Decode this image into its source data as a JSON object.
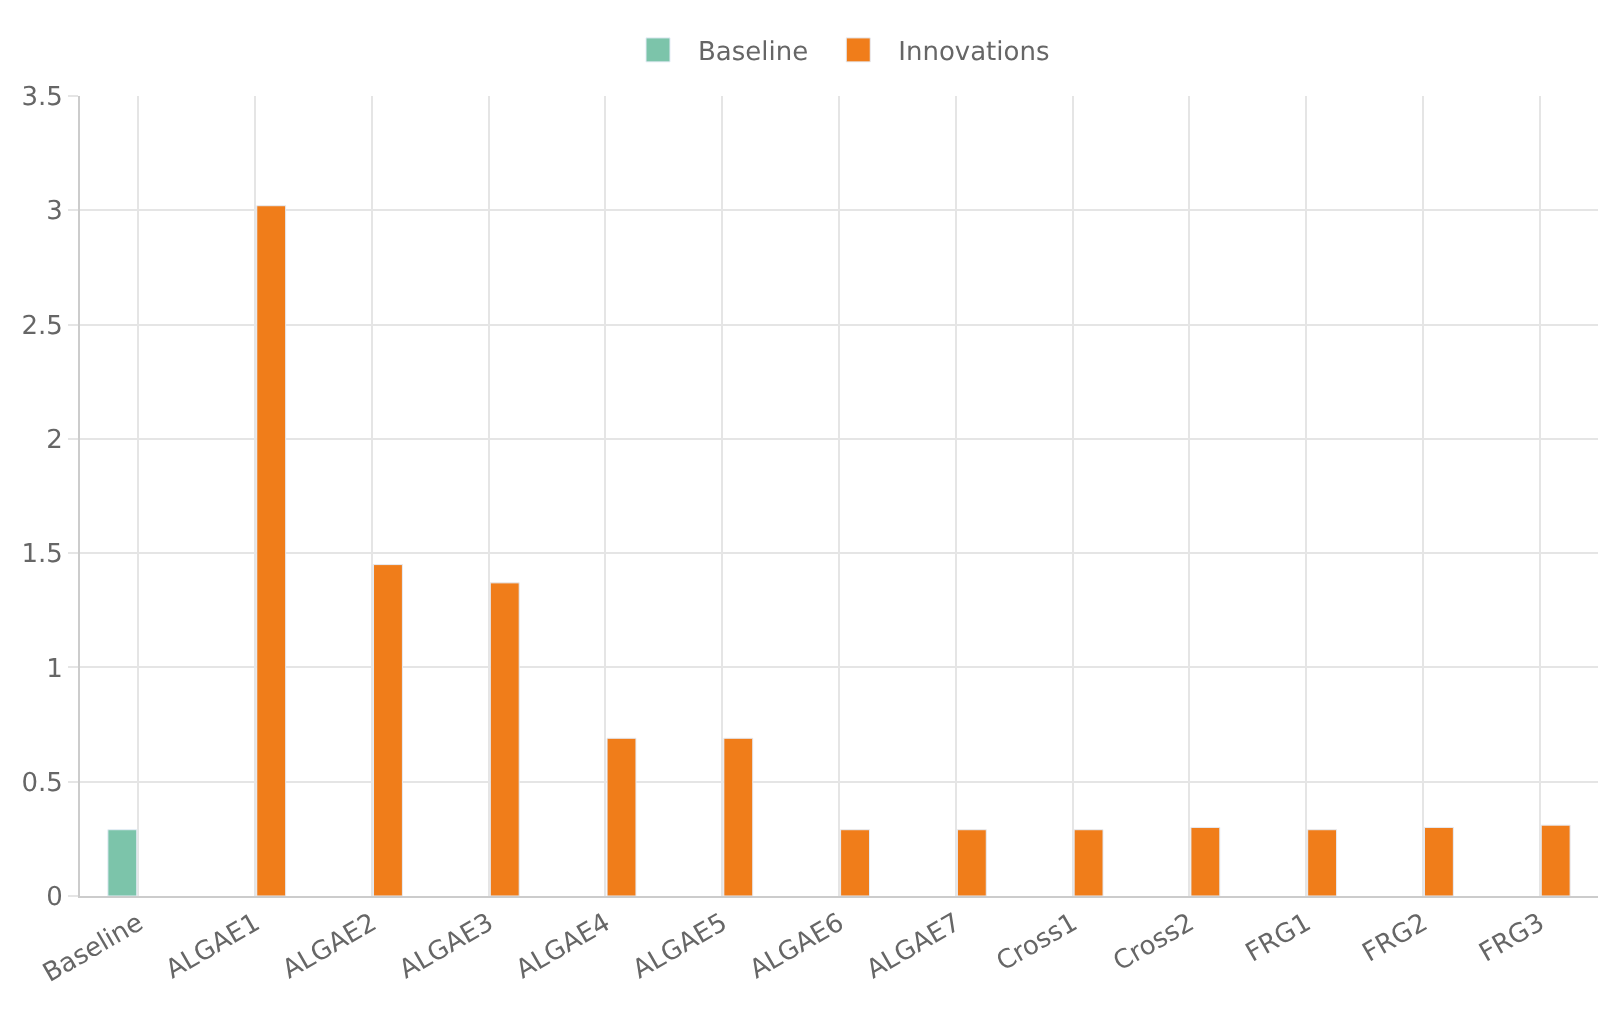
{
  "chart_data": {
    "type": "bar",
    "categories": [
      "Baseline",
      "ALGAE1",
      "ALGAE2",
      "ALGAE3",
      "ALGAE4",
      "ALGAE5",
      "ALGAE6",
      "ALGAE7",
      "Cross1",
      "Cross2",
      "FRG1",
      "FRG2",
      "FRG3"
    ],
    "series": [
      {
        "name": "Baseline",
        "color": "#7cc4aa",
        "values": [
          0.29,
          null,
          null,
          null,
          null,
          null,
          null,
          null,
          null,
          null,
          null,
          null,
          null
        ]
      },
      {
        "name": "Innovations",
        "color": "#f07d1a",
        "values": [
          null,
          3.02,
          1.45,
          1.37,
          0.69,
          0.69,
          0.29,
          0.29,
          0.29,
          0.3,
          0.29,
          0.3,
          0.31
        ]
      }
    ],
    "ylim": [
      0,
      3.5
    ],
    "yticks": [
      0,
      0.5,
      1,
      1.5,
      2,
      2.5,
      3,
      3.5
    ],
    "grid": true,
    "legend": "top"
  }
}
